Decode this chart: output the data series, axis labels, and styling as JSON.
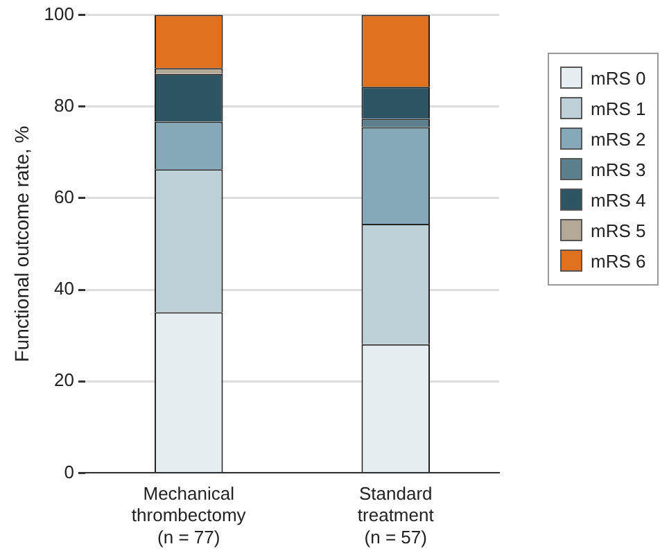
{
  "chart_data": {
    "type": "bar",
    "stacked": true,
    "ylabel": "Functional outcome rate, %",
    "categories": [
      "Mechanical\nthrombectomy\n(n = 77)",
      "Standard\ntreatment\n(n = 57)"
    ],
    "series": [
      {
        "name": "mRS 0",
        "color": "#e6eef1",
        "values": [
          35.1,
          28.1
        ]
      },
      {
        "name": "mRS 1",
        "color": "#bdd0d8",
        "values": [
          31.2,
          26.3
        ]
      },
      {
        "name": "mRS 2",
        "color": "#85a9b8",
        "values": [
          10.4,
          21.1
        ]
      },
      {
        "name": "mRS 3",
        "color": "#5b7f8c",
        "values": [
          0,
          1.8
        ]
      },
      {
        "name": "mRS 4",
        "color": "#2e5563",
        "values": [
          10.4,
          7.0
        ]
      },
      {
        "name": "mRS 5",
        "color": "#b4a997",
        "values": [
          1.3,
          0
        ]
      },
      {
        "name": "mRS 6",
        "color": "#e0711f",
        "values": [
          11.6,
          15.7
        ]
      }
    ],
    "ylim": [
      0,
      100
    ],
    "yticks": [
      0,
      20,
      40,
      60,
      80,
      100
    ],
    "grid": "y",
    "legend": "right"
  }
}
